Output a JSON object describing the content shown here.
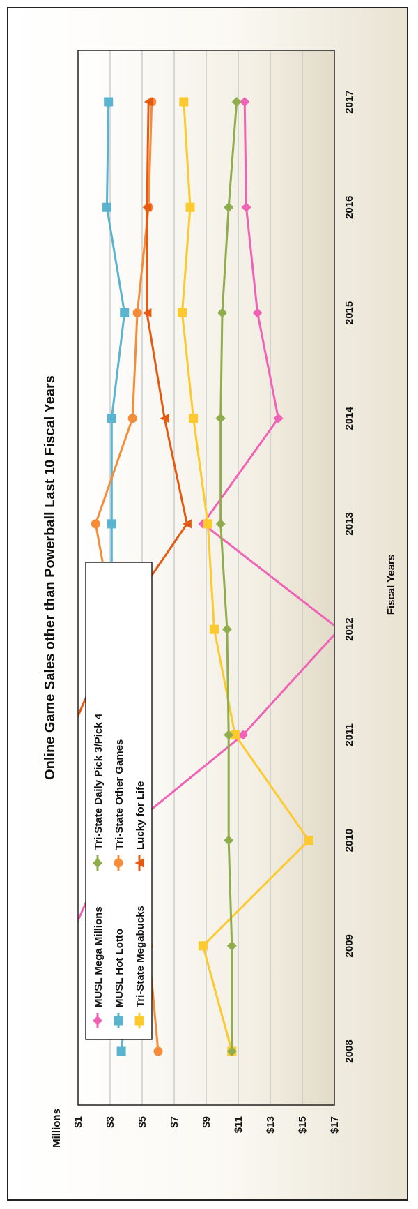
{
  "chart_data": {
    "type": "line",
    "orientation": "rotated-90-ccw",
    "title": "Online Game Sales other than Powerball Last 10 Fiscal Years",
    "xlabel": "Fiscal Years",
    "ylabel": "Millions",
    "x": [
      "2008",
      "2009",
      "2010",
      "2011",
      "2012",
      "2013",
      "2014",
      "2015",
      "2016",
      "2017"
    ],
    "ylim": [
      1,
      17
    ],
    "yticks": [
      "$1",
      "$3",
      "$5",
      "$7",
      "$9",
      "$11",
      "$13",
      "$15",
      "$17"
    ],
    "grid": true,
    "legend_position": "top-left",
    "series": [
      {
        "name": "MUSL Mega Millions",
        "color": "#f062b5",
        "marker": "diamond",
        "values": [
          null,
          0.3,
          3.2,
          11.3,
          17.3,
          8.8,
          13.5,
          12.2,
          11.5,
          11.4
        ]
      },
      {
        "name": "MUSL Hot Lotto",
        "color": "#5ab4cf",
        "marker": "square",
        "values": [
          3.7,
          4.4,
          4.2,
          3.8,
          3.1,
          3.1,
          3.1,
          3.9,
          2.8,
          2.9
        ]
      },
      {
        "name": "Tri-State Megabucks",
        "color": "#fcc92e",
        "marker": "square",
        "values": [
          10.6,
          8.8,
          15.4,
          10.8,
          9.5,
          9.1,
          8.2,
          7.5,
          8.0,
          7.6
        ]
      },
      {
        "name": "Tri-State Daily Pick 3/Pick 4",
        "color": "#8fad4c",
        "marker": "diamond",
        "values": [
          10.6,
          10.6,
          10.4,
          10.4,
          10.3,
          9.9,
          9.9,
          10.0,
          10.4,
          10.9
        ]
      },
      {
        "name": "Tri-State Other Games",
        "color": "#f58c3a",
        "marker": "circle",
        "values": [
          6.0,
          5.4,
          5.3,
          4.9,
          3.3,
          2.1,
          4.4,
          4.7,
          5.4,
          5.6
        ]
      },
      {
        "name": "Lucky for Life",
        "color": "#e45a12",
        "marker": "triangle",
        "values": [
          null,
          null,
          null,
          0.5,
          3.3,
          7.8,
          6.4,
          5.3,
          5.3,
          5.4
        ]
      }
    ]
  }
}
